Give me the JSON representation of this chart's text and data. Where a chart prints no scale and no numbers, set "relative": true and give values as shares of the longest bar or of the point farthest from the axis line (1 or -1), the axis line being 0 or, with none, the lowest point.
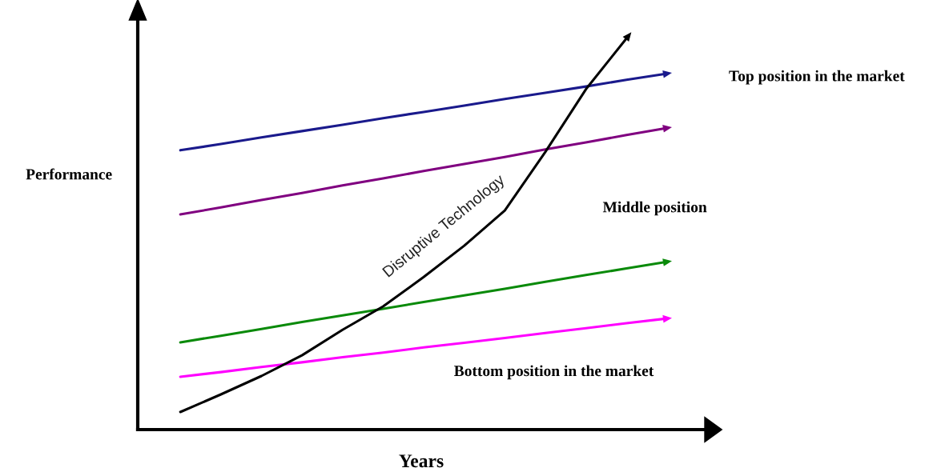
{
  "chart_data": {
    "type": "line",
    "relative": true,
    "xlabel": "Years",
    "ylabel": "Performance",
    "categories": [
      null,
      null,
      null,
      null,
      null,
      null,
      null,
      null,
      null,
      null,
      null,
      null,
      null
    ],
    "tick_labels": false,
    "grid": false,
    "marker": "none",
    "line_style": "solid",
    "annotations": [
      "Top position in the market",
      "Middle position",
      "Bottom position in the market"
    ],
    "series": [
      {
        "color": "#1a1a8c",
        "values": [
          0.714,
          0.73,
          0.747,
          0.763,
          0.779,
          0.796,
          0.812,
          0.828,
          0.845,
          0.861,
          0.877,
          0.894,
          0.91
        ]
      },
      {
        "color": "#800080",
        "values": [
          0.55,
          0.568,
          0.587,
          0.605,
          0.624,
          0.642,
          0.661,
          0.679,
          0.697,
          0.716,
          0.734,
          0.753,
          0.771
        ]
      },
      {
        "color": "#0a8a0a",
        "values": [
          0.223,
          0.24,
          0.257,
          0.275,
          0.292,
          0.309,
          0.326,
          0.343,
          0.36,
          0.378,
          0.395,
          0.412,
          0.429
        ]
      },
      {
        "color": "#ff00ff",
        "values": [
          0.135,
          0.147,
          0.16,
          0.172,
          0.185,
          0.197,
          0.21,
          0.222,
          0.234,
          0.247,
          0.259,
          0.272,
          0.284
        ]
      },
      {
        "name": "Disruptive Technology",
        "color": "#000000",
        "values": [
          0.045,
          0.09,
          0.137,
          0.19,
          0.255,
          0.315,
          0.39,
          0.47,
          0.56,
          0.71,
          0.87,
          1.0,
          null
        ]
      }
    ]
  }
}
